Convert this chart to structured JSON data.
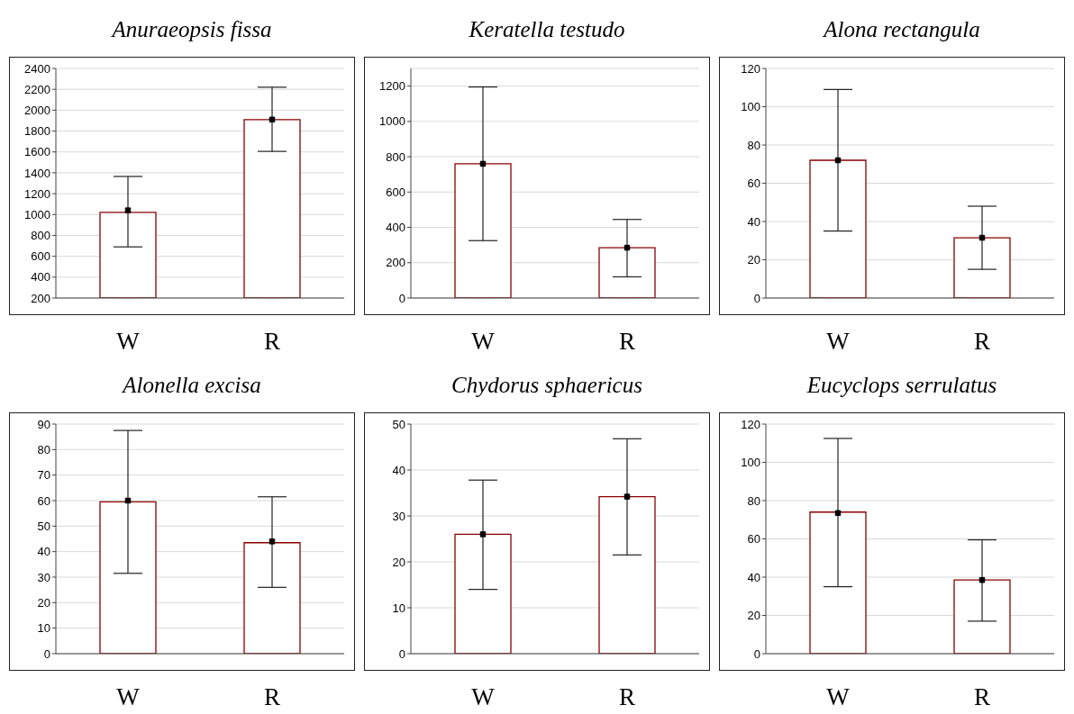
{
  "chart_data": [
    {
      "type": "bar",
      "title": "Anuraeopsis fissa",
      "categories": [
        "W",
        "R"
      ],
      "ylim": [
        200,
        2400
      ],
      "yticks": [
        200,
        400,
        600,
        800,
        1000,
        1200,
        1400,
        1600,
        1800,
        2000,
        2200,
        2400
      ],
      "grid": "y",
      "marker": "square",
      "series": [
        {
          "color": "#8b0000",
          "values": [
            1020,
            1910
          ]
        },
        {
          "type": "scatter",
          "color": "#000000",
          "x": [
            "W",
            "R"
          ],
          "values": [
            1040,
            1910
          ],
          "errors": [
            [
              690,
              1365
            ],
            [
              1605,
              2220
            ]
          ]
        }
      ]
    },
    {
      "type": "bar",
      "title": "Keratella testudo",
      "categories": [
        "W",
        "R"
      ],
      "ylim": [
        0,
        1300
      ],
      "yticks": [
        0,
        200,
        400,
        600,
        800,
        1000,
        1200
      ],
      "grid": "y",
      "marker": "square",
      "series": [
        {
          "color": "#8b0000",
          "values": [
            760,
            285
          ]
        },
        {
          "type": "scatter",
          "color": "#000000",
          "x": [
            "W",
            "R"
          ],
          "values": [
            760,
            285
          ],
          "errors": [
            [
              325,
              1195
            ],
            [
              120,
              445
            ]
          ]
        }
      ]
    },
    {
      "type": "bar",
      "title": "Alona rectangula",
      "categories": [
        "W",
        "R"
      ],
      "ylim": [
        0,
        120
      ],
      "yticks": [
        0,
        20,
        40,
        60,
        80,
        100,
        120
      ],
      "grid": "y",
      "marker": "square",
      "series": [
        {
          "color": "#8b0000",
          "values": [
            72,
            31.5
          ]
        },
        {
          "type": "scatter",
          "color": "#000000",
          "x": [
            "W",
            "R"
          ],
          "values": [
            72,
            31.5
          ],
          "errors": [
            [
              35,
              109
            ],
            [
              15,
              48
            ]
          ]
        }
      ]
    },
    {
      "type": "bar",
      "title": "Alonella excisa",
      "categories": [
        "W",
        "R"
      ],
      "ylim": [
        0,
        90
      ],
      "yticks": [
        0,
        10,
        20,
        30,
        40,
        50,
        60,
        70,
        80,
        90
      ],
      "grid": "y",
      "marker": "square",
      "series": [
        {
          "color": "#8b0000",
          "values": [
            59.5,
            43.5
          ]
        },
        {
          "type": "scatter",
          "color": "#000000",
          "x": [
            "W",
            "R"
          ],
          "values": [
            60,
            44
          ],
          "errors": [
            [
              31.5,
              87.5
            ],
            [
              26,
              61.5
            ]
          ]
        }
      ]
    },
    {
      "type": "bar",
      "title": "Chydorus sphaericus",
      "categories": [
        "W",
        "R"
      ],
      "ylim": [
        0,
        50
      ],
      "yticks": [
        0,
        10,
        20,
        30,
        40,
        50
      ],
      "grid": "y",
      "marker": "square",
      "series": [
        {
          "color": "#8b0000",
          "values": [
            26,
            34.2
          ]
        },
        {
          "type": "scatter",
          "color": "#000000",
          "x": [
            "W",
            "R"
          ],
          "values": [
            26,
            34.2
          ],
          "errors": [
            [
              14,
              37.8
            ],
            [
              21.5,
              46.8
            ]
          ]
        }
      ]
    },
    {
      "type": "bar",
      "title": "Eucyclops serrulatus",
      "categories": [
        "W",
        "R"
      ],
      "ylim": [
        0,
        120
      ],
      "yticks": [
        0,
        20,
        40,
        60,
        80,
        100,
        120
      ],
      "grid": "y",
      "marker": "square",
      "series": [
        {
          "color": "#8b0000",
          "values": [
            74,
            38.5
          ]
        },
        {
          "type": "scatter",
          "color": "#000000",
          "x": [
            "W",
            "R"
          ],
          "values": [
            73.5,
            38.5
          ],
          "errors": [
            [
              35,
              112.5
            ],
            [
              17,
              59.5
            ]
          ]
        }
      ]
    }
  ]
}
